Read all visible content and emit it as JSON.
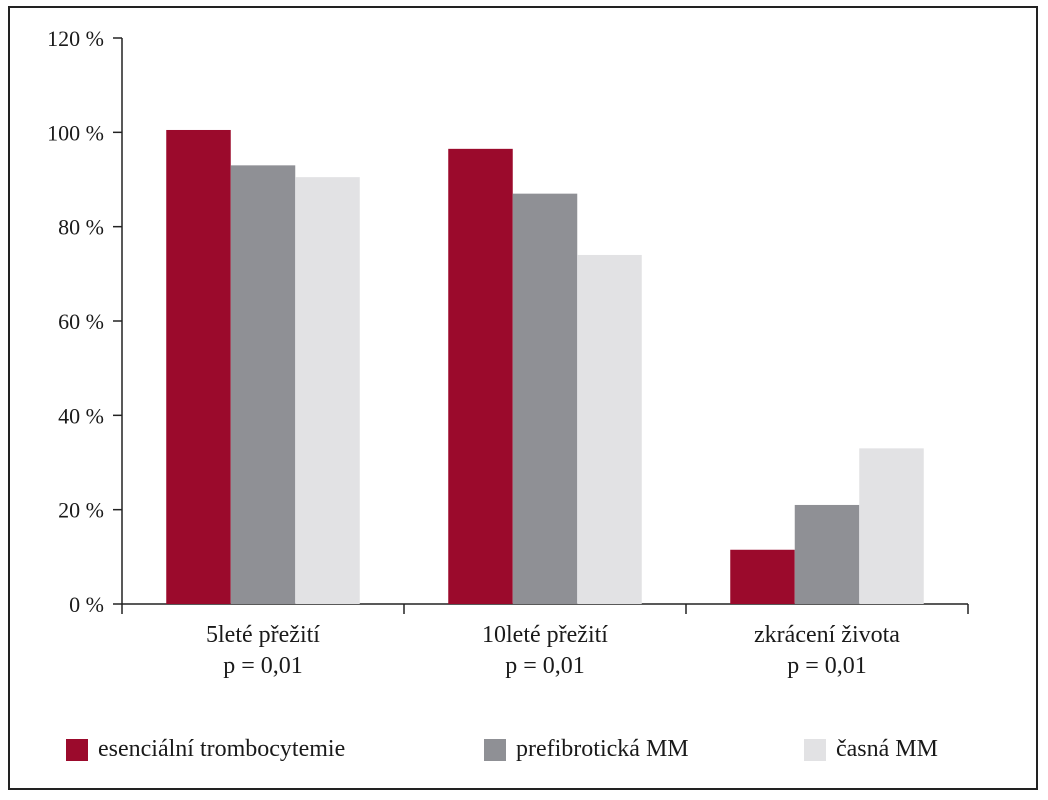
{
  "chart_data": {
    "type": "bar",
    "categories": [
      [
        "5leté přežití",
        "p = 0,01"
      ],
      [
        "10leté přežití",
        "p = 0,01"
      ],
      [
        "zkrácení života",
        "p = 0,01"
      ]
    ],
    "series": [
      {
        "name": "esenciální trombocytemie",
        "color": "#9b0a2c",
        "values": [
          100.5,
          96.5,
          11.5
        ]
      },
      {
        "name": "prefibrotická MM",
        "color": "#8f9095",
        "values": [
          93,
          87,
          21
        ]
      },
      {
        "name": "časná MM",
        "color": "#e2e2e4",
        "values": [
          90.5,
          74,
          33
        ]
      }
    ],
    "ylim": [
      0,
      120
    ],
    "yticks": [
      "0 %",
      "20 %",
      "40 %",
      "60 %",
      "80 %",
      "100 %",
      "120 %"
    ],
    "grid": false,
    "legend": "bottom"
  }
}
